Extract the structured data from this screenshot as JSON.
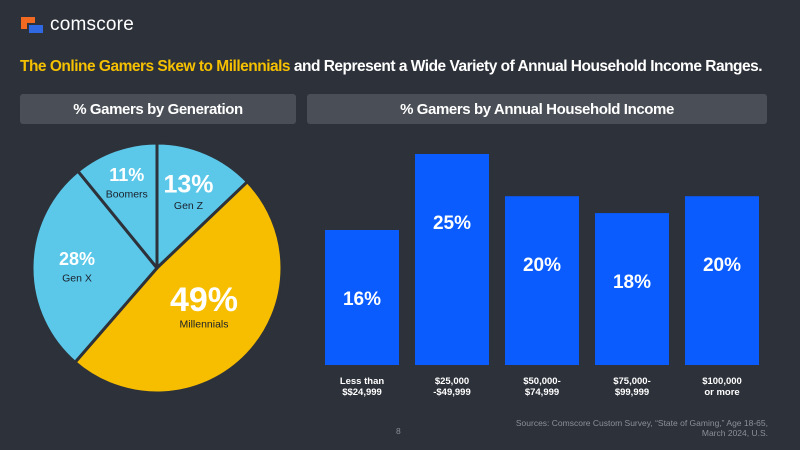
{
  "brand": {
    "name": "comscore",
    "colors": {
      "orange": "#f26a21",
      "blue": "#2f68e0"
    }
  },
  "headline": {
    "highlight": "The Online Gamers Skew to Millennials",
    "rest": " and Represent a Wide Variety of Annual Household Income Ranges."
  },
  "chart_data": [
    {
      "type": "pie",
      "title": "% Gamers by Generation",
      "slices": [
        {
          "label": "Gen Z",
          "value": 13,
          "display": "13%",
          "color": "#5bc8ea"
        },
        {
          "label": "Millennials",
          "value": 49,
          "display": "49%",
          "color": "#f7be00"
        },
        {
          "label": "Gen X",
          "value": 28,
          "display": "28%",
          "color": "#5bc8ea"
        },
        {
          "label": "Boomers",
          "value": 11,
          "display": "11%",
          "color": "#5bc8ea"
        }
      ]
    },
    {
      "type": "bar",
      "title": "% Gamers by Annual Household Income",
      "categories": [
        [
          "Less than",
          "$$24,999"
        ],
        [
          "$25,000",
          "-$49,999"
        ],
        [
          "$50,000-",
          "$74,999"
        ],
        [
          "$75,000-",
          "$99,999"
        ],
        [
          "$100,000",
          "or more"
        ]
      ],
      "values": [
        16,
        25,
        20,
        18,
        20
      ],
      "labels": [
        "16%",
        "25%",
        "20%",
        "18%",
        "20%"
      ],
      "bar_color": "#0a5cff",
      "ylim": [
        0,
        25
      ]
    }
  ],
  "source": {
    "line1": "Sources: Comscore Custom Survey, “State of Gaming,” Age 18-65,",
    "line2": "March 2024, U.S."
  },
  "page_number": "8"
}
